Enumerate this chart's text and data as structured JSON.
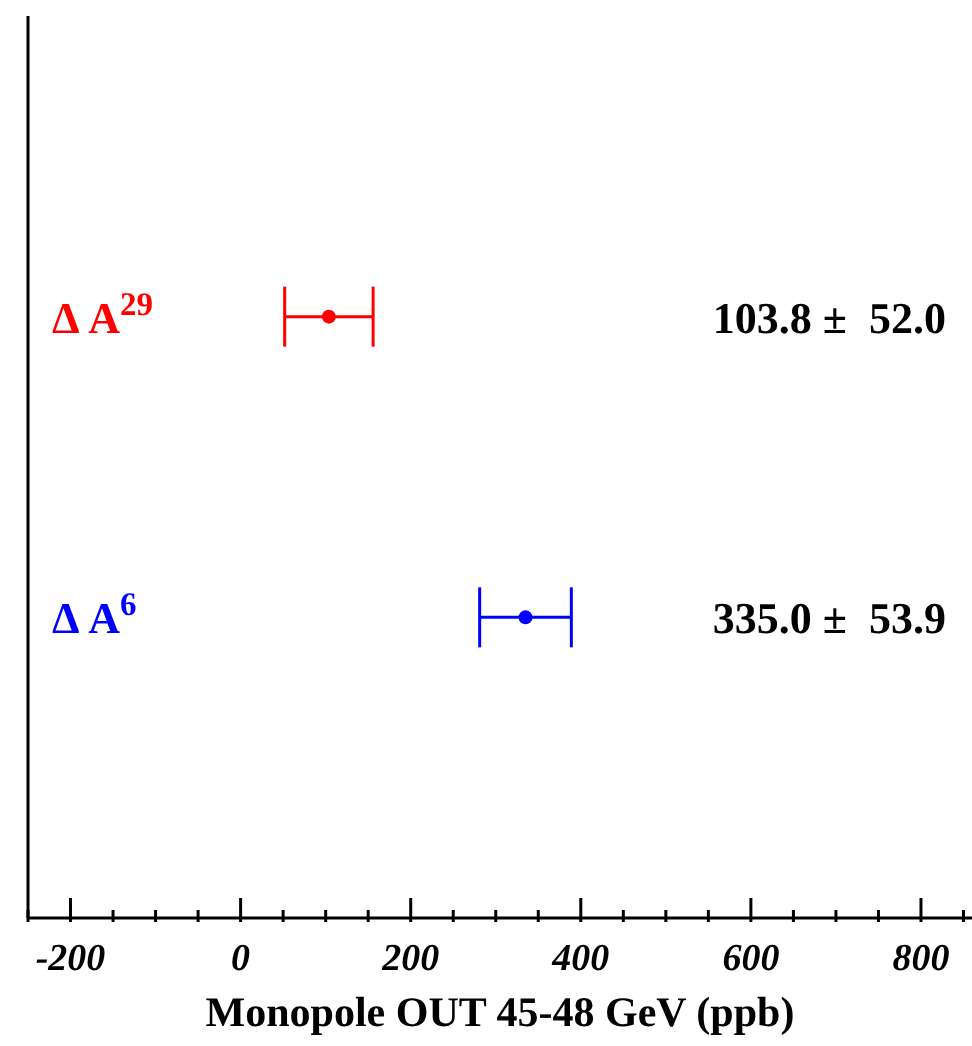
{
  "chart_data": {
    "type": "scatter",
    "orientation": "horizontal",
    "xlabel": "Monopole OUT 45-48 GeV (ppb)",
    "categories": [
      "Δ A$^{29}$",
      "Δ A$^{6}$"
    ],
    "values": [
      103.8,
      335.0
    ],
    "errors": [
      52.0,
      53.9
    ],
    "colors": [
      "#ff0000",
      "#0000ff"
    ],
    "annotations": [
      "103.8 ±  52.0",
      "335.0 ±  53.9"
    ],
    "marker": "circle",
    "xlim": [
      -250,
      860
    ],
    "xticks": [
      {
        "value": -250,
        "label": null
      },
      -200,
      {
        "value": -150,
        "label": null
      },
      {
        "value": -100,
        "label": null
      },
      {
        "value": -50,
        "label": null
      },
      0,
      {
        "value": 50,
        "label": null
      },
      {
        "value": 100,
        "label": null
      },
      {
        "value": 150,
        "label": null
      },
      200,
      {
        "value": 250,
        "label": null
      },
      {
        "value": 300,
        "label": null
      },
      {
        "value": 350,
        "label": null
      },
      400,
      {
        "value": 450,
        "label": null
      },
      {
        "value": 500,
        "label": null
      },
      {
        "value": 550,
        "label": null
      },
      600,
      {
        "value": 650,
        "label": null
      },
      {
        "value": 700,
        "label": null
      },
      {
        "value": 750,
        "label": null
      },
      800,
      {
        "value": 850,
        "label": null
      }
    ]
  }
}
